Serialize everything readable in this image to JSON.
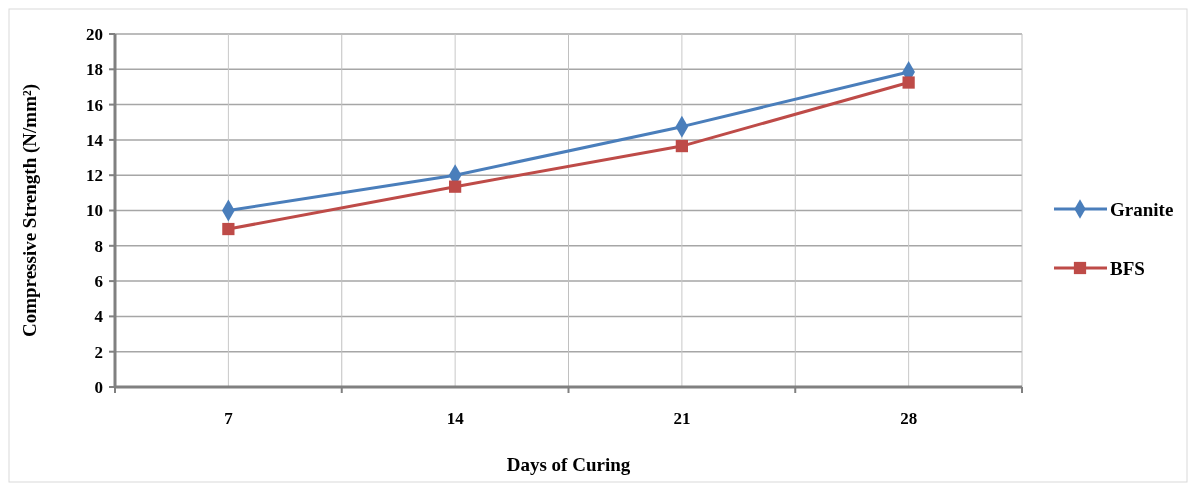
{
  "chart_data": {
    "type": "line",
    "xlabel": "Days of Curing",
    "ylabel": "Compressive Strength (N/mm²)",
    "categories": [
      "7",
      "14",
      "21",
      "28"
    ],
    "series": [
      {
        "name": "Granite",
        "color": "#4a7ebb",
        "marker": "diamond",
        "values": [
          10,
          12,
          14.75,
          17.85
        ]
      },
      {
        "name": "BFS",
        "color": "#be4b48",
        "marker": "square",
        "values": [
          8.95,
          11.35,
          13.65,
          17.25
        ]
      }
    ],
    "ylim": [
      0,
      20
    ],
    "yticks": [
      0,
      2,
      4,
      6,
      8,
      10,
      12,
      14,
      16,
      18,
      20
    ],
    "grid": true,
    "legend": "right"
  }
}
